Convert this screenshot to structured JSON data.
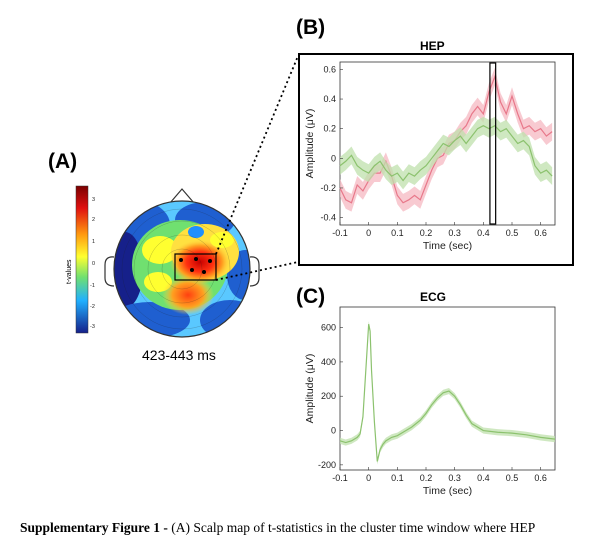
{
  "panel_a": {
    "label": "(A)",
    "colorbar_label": "t-values",
    "colorbar_ticks": [
      "3",
      "2",
      "1",
      "0",
      "-1",
      "-2",
      "-3"
    ],
    "time_window": "423-443 ms"
  },
  "caption": {
    "bold": "Supplementary Figure 1 -",
    "text": " (A) Scalp map of t-statistics in the cluster time window where HEP"
  },
  "chart_data": [
    {
      "type": "line",
      "panel_label": "(B)",
      "title": "HEP",
      "xlabel": "Time (sec)",
      "ylabel": "Amplitude (μV)",
      "xlim": [
        -0.1,
        0.65
      ],
      "ylim": [
        -0.45,
        0.65
      ],
      "xticks": [
        "-0.1",
        "0",
        "0.1",
        "0.2",
        "0.3",
        "0.4",
        "0.5",
        "0.6"
      ],
      "yticks": [
        "0.6",
        "0.4",
        "0.2",
        "0",
        "-0.2",
        "-0.4"
      ],
      "highlight_window": [
        0.423,
        0.443
      ],
      "series_colors": [
        "#e8788a",
        "#8cc26e"
      ],
      "band_colors": [
        "#f6b8c2",
        "#bfe0ac"
      ],
      "series": [
        {
          "x": [
            -0.1,
            -0.08,
            -0.06,
            -0.04,
            -0.02,
            0,
            0.02,
            0.04,
            0.06,
            0.08,
            0.1,
            0.12,
            0.14,
            0.16,
            0.18,
            0.2,
            0.22,
            0.24,
            0.26,
            0.28,
            0.3,
            0.32,
            0.34,
            0.36,
            0.38,
            0.4,
            0.42,
            0.44,
            0.46,
            0.48,
            0.5,
            0.52,
            0.54,
            0.56,
            0.58,
            0.6,
            0.62,
            0.64
          ],
          "values": [
            -0.2,
            -0.28,
            -0.3,
            -0.18,
            -0.22,
            -0.15,
            -0.1,
            -0.1,
            -0.02,
            -0.12,
            -0.25,
            -0.3,
            -0.28,
            -0.25,
            -0.28,
            -0.18,
            -0.08,
            0.0,
            0.02,
            0.1,
            0.12,
            0.18,
            0.22,
            0.3,
            0.35,
            0.3,
            0.45,
            0.55,
            0.38,
            0.3,
            0.42,
            0.3,
            0.2,
            0.22,
            0.18,
            0.2,
            0.15,
            0.18
          ],
          "band": 0.06
        },
        {
          "x": [
            -0.1,
            -0.08,
            -0.06,
            -0.04,
            -0.02,
            0,
            0.02,
            0.04,
            0.06,
            0.08,
            0.1,
            0.12,
            0.14,
            0.16,
            0.18,
            0.2,
            0.22,
            0.24,
            0.26,
            0.28,
            0.3,
            0.32,
            0.34,
            0.36,
            0.38,
            0.4,
            0.42,
            0.44,
            0.46,
            0.48,
            0.5,
            0.52,
            0.54,
            0.56,
            0.58,
            0.6,
            0.62,
            0.64
          ],
          "values": [
            -0.05,
            -0.02,
            0.02,
            -0.05,
            -0.08,
            -0.1,
            -0.05,
            -0.02,
            -0.08,
            -0.12,
            -0.1,
            -0.15,
            -0.1,
            -0.12,
            -0.08,
            -0.05,
            0.0,
            0.05,
            0.1,
            0.08,
            0.12,
            0.15,
            0.1,
            0.15,
            0.2,
            0.22,
            0.2,
            0.22,
            0.18,
            0.2,
            0.15,
            0.1,
            0.12,
            0.08,
            -0.05,
            -0.1,
            -0.08,
            -0.12
          ],
          "band": 0.06
        }
      ]
    },
    {
      "type": "line",
      "panel_label": "(C)",
      "title": "ECG",
      "xlabel": "Time (sec)",
      "ylabel": "Amplitude (μV)",
      "xlim": [
        -0.1,
        0.65
      ],
      "ylim": [
        -230,
        720
      ],
      "xticks": [
        "-0.1",
        "0",
        "0.1",
        "0.2",
        "0.3",
        "0.4",
        "0.5",
        "0.6"
      ],
      "yticks": [
        "600",
        "400",
        "200",
        "0",
        "-200"
      ],
      "series_colors": [
        "#8cc26e"
      ],
      "band_colors": [
        "#bfe0ac"
      ],
      "series": [
        {
          "x": [
            -0.1,
            -0.08,
            -0.06,
            -0.04,
            -0.03,
            -0.02,
            -0.01,
            0.0,
            0.005,
            0.01,
            0.02,
            0.03,
            0.04,
            0.05,
            0.06,
            0.08,
            0.1,
            0.12,
            0.15,
            0.18,
            0.2,
            0.22,
            0.24,
            0.26,
            0.28,
            0.3,
            0.32,
            0.34,
            0.36,
            0.4,
            0.45,
            0.5,
            0.55,
            0.6,
            0.65
          ],
          "values": [
            -60,
            -70,
            -60,
            -40,
            -20,
            80,
            350,
            620,
            580,
            350,
            50,
            -180,
            -110,
            -80,
            -60,
            -40,
            -30,
            -10,
            20,
            60,
            100,
            150,
            190,
            220,
            230,
            200,
            150,
            90,
            40,
            0,
            -10,
            -15,
            -25,
            -40,
            -50
          ],
          "band": 18
        }
      ]
    }
  ]
}
